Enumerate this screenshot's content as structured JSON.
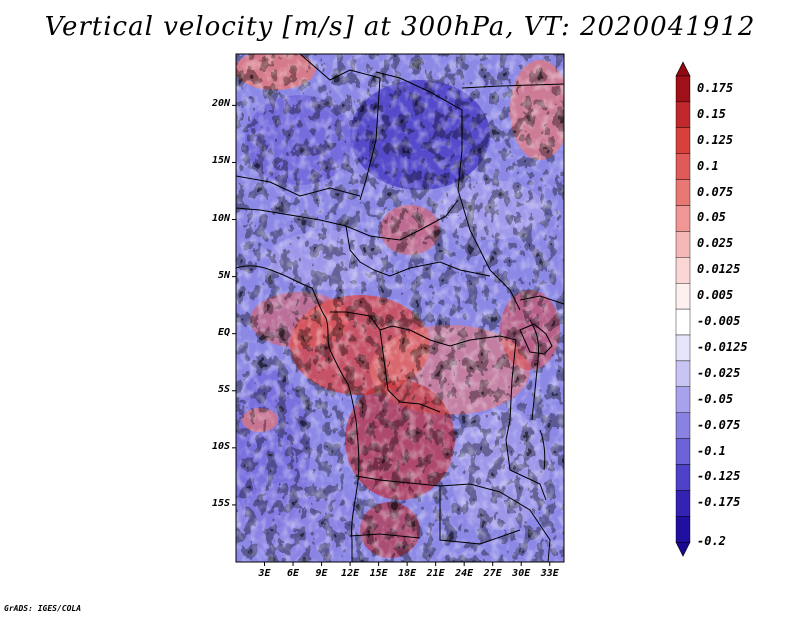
{
  "title": "Vertical velocity [m/s] at 300hPa, VT: 2020041912",
  "credit": "GrADS: IGES/COLA",
  "map": {
    "lat_labels": [
      "20N",
      "15N",
      "10N",
      "5N",
      "EQ",
      "5S",
      "10S",
      "15S"
    ],
    "lat_values": [
      20,
      15,
      10,
      5,
      0,
      -5,
      -10,
      -15
    ],
    "lon_labels": [
      "3E",
      "6E",
      "9E",
      "12E",
      "15E",
      "18E",
      "21E",
      "24E",
      "27E",
      "30E",
      "33E"
    ],
    "lon_values": [
      3,
      6,
      9,
      12,
      15,
      18,
      21,
      24,
      27,
      30,
      33
    ],
    "lat_range": [
      -20,
      24.5
    ],
    "lon_range": [
      0,
      34.5
    ]
  },
  "colorbar": {
    "labels": [
      "0.175",
      "0.15",
      "0.125",
      "0.1",
      "0.075",
      "0.05",
      "0.025",
      "0.0125",
      "0.005",
      "-0.005",
      "-0.0125",
      "-0.025",
      "-0.05",
      "-0.075",
      "-0.1",
      "-0.125",
      "-0.175",
      "-0.2"
    ],
    "colors": [
      "#a01018",
      "#c0282c",
      "#d8403c",
      "#e05a58",
      "#e87874",
      "#f09694",
      "#f6b8b6",
      "#fad6d4",
      "#fdf0ef",
      "#ffffff",
      "#e6e4fb",
      "#c8c4f4",
      "#a8a2ec",
      "#8a82e2",
      "#6c62d8",
      "#4e42c8",
      "#3422b4",
      "#2010a0"
    ],
    "top_color": "#900810",
    "bottom_color": "#1a0890"
  }
}
